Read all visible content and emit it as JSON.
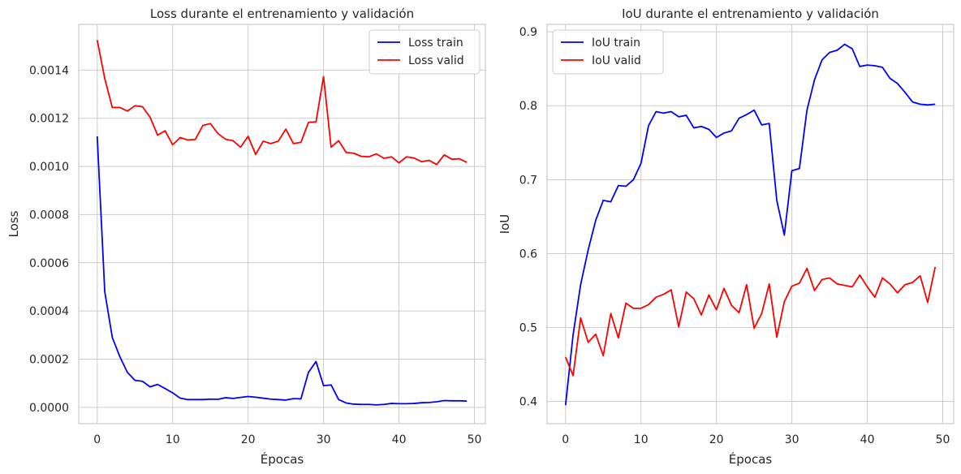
{
  "chart_data": [
    {
      "type": "line",
      "title": "Loss durante el entrenamiento y validación",
      "xlabel": "Épocas",
      "ylabel": "Loss",
      "xlim": [
        -2.45,
        51.45
      ],
      "ylim": [
        -6.8e-05,
        0.00159
      ],
      "xticks": [
        0,
        10,
        20,
        30,
        40,
        50
      ],
      "xtick_labels": [
        "0",
        "10",
        "20",
        "30",
        "40",
        "50"
      ],
      "yticks": [
        0,
        0.0002,
        0.0004,
        0.0006,
        0.0008,
        0.001,
        0.0012,
        0.0014
      ],
      "ytick_labels": [
        "0.0000",
        "0.0002",
        "0.0004",
        "0.0006",
        "0.0008",
        "0.0010",
        "0.0012",
        "0.0014"
      ],
      "grid": true,
      "legend_position": "upper right",
      "series": [
        {
          "name": "Loss train",
          "color": "#0000ff",
          "x": [
            0,
            1,
            2,
            3,
            4,
            5,
            6,
            7,
            8,
            9,
            10,
            11,
            12,
            13,
            14,
            15,
            16,
            17,
            18,
            19,
            20,
            21,
            22,
            23,
            24,
            25,
            26,
            27,
            28,
            29,
            30,
            31,
            32,
            33,
            34,
            35,
            36,
            37,
            38,
            39,
            40,
            41,
            42,
            43,
            44,
            45,
            46,
            47,
            48,
            49
          ],
          "values": [
            0.001125,
            0.00048,
            0.00029,
            0.00021,
            0.000145,
            0.000112,
            0.000108,
            8.5e-05,
            9.5e-05,
            7.8e-05,
            6e-05,
            3.8e-05,
            3.2e-05,
            3.2e-05,
            3.2e-05,
            3.4e-05,
            3.3e-05,
            4e-05,
            3.7e-05,
            4.1e-05,
            4.5e-05,
            4.2e-05,
            3.8e-05,
            3.4e-05,
            3.2e-05,
            3e-05,
            3.6e-05,
            3.5e-05,
            0.000145,
            0.00019,
            9e-05,
            9.3e-05,
            3.2e-05,
            1.8e-05,
            1.3e-05,
            1.2e-05,
            1.2e-05,
            1e-05,
            1.2e-05,
            1.6e-05,
            1.5e-05,
            1.5e-05,
            1.6e-05,
            1.9e-05,
            2e-05,
            2.3e-05,
            2.8e-05,
            2.7e-05,
            2.7e-05,
            2.6e-05
          ]
        },
        {
          "name": "Loss valid",
          "color": "#ff0000",
          "x": [
            0,
            1,
            2,
            3,
            4,
            5,
            6,
            7,
            8,
            9,
            10,
            11,
            12,
            13,
            14,
            15,
            16,
            17,
            18,
            19,
            20,
            21,
            22,
            23,
            24,
            25,
            26,
            27,
            28,
            29,
            30,
            31,
            32,
            33,
            34,
            35,
            36,
            37,
            38,
            39,
            40,
            41,
            42,
            43,
            44,
            45,
            46,
            47,
            48,
            49
          ],
          "values": [
            0.001525,
            0.001365,
            0.001245,
            0.001245,
            0.00123,
            0.001252,
            0.001248,
            0.001205,
            0.00113,
            0.001148,
            0.00109,
            0.00112,
            0.00111,
            0.001112,
            0.00117,
            0.001178,
            0.001137,
            0.001113,
            0.001107,
            0.00108,
            0.001125,
            0.00105,
            0.001105,
            0.001095,
            0.001105,
            0.001155,
            0.001095,
            0.0011,
            0.001183,
            0.001185,
            0.001373,
            0.00108,
            0.001107,
            0.001058,
            0.001055,
            0.001042,
            0.00104,
            0.001052,
            0.001034,
            0.00104,
            0.001015,
            0.00104,
            0.001035,
            0.00102,
            0.001025,
            0.001008,
            0.001048,
            0.00103,
            0.001032,
            0.001017
          ]
        }
      ]
    },
    {
      "type": "line",
      "title": "IoU durante el entrenamiento y validación",
      "xlabel": "Épocas",
      "ylabel": "IoU",
      "xlim": [
        -2.45,
        51.45
      ],
      "ylim": [
        0.37,
        0.91
      ],
      "xticks": [
        0,
        10,
        20,
        30,
        40,
        50
      ],
      "xtick_labels": [
        "0",
        "10",
        "20",
        "30",
        "40",
        "50"
      ],
      "yticks": [
        0.4,
        0.5,
        0.6,
        0.7,
        0.8,
        0.9
      ],
      "ytick_labels": [
        "0.4",
        "0.5",
        "0.6",
        "0.7",
        "0.8",
        "0.9"
      ],
      "grid": true,
      "legend_position": "upper left",
      "series": [
        {
          "name": "IoU train",
          "color": "#0000ff",
          "x": [
            0,
            1,
            2,
            3,
            4,
            5,
            6,
            7,
            8,
            9,
            10,
            11,
            12,
            13,
            14,
            15,
            16,
            17,
            18,
            19,
            20,
            21,
            22,
            23,
            24,
            25,
            26,
            27,
            28,
            29,
            30,
            31,
            32,
            33,
            34,
            35,
            36,
            37,
            38,
            39,
            40,
            41,
            42,
            43,
            44,
            45,
            46,
            47,
            48,
            49
          ],
          "values": [
            0.395,
            0.49,
            0.558,
            0.605,
            0.645,
            0.672,
            0.67,
            0.692,
            0.691,
            0.7,
            0.722,
            0.773,
            0.792,
            0.79,
            0.792,
            0.785,
            0.787,
            0.77,
            0.772,
            0.768,
            0.757,
            0.763,
            0.766,
            0.783,
            0.788,
            0.794,
            0.774,
            0.776,
            0.672,
            0.625,
            0.712,
            0.715,
            0.794,
            0.835,
            0.862,
            0.872,
            0.875,
            0.883,
            0.877,
            0.853,
            0.855,
            0.854,
            0.852,
            0.837,
            0.83,
            0.818,
            0.805,
            0.802,
            0.801,
            0.802
          ]
        },
        {
          "name": "IoU valid",
          "color": "#ff0000",
          "x": [
            0,
            1,
            2,
            3,
            4,
            5,
            6,
            7,
            8,
            9,
            10,
            11,
            12,
            13,
            14,
            15,
            16,
            17,
            18,
            19,
            20,
            21,
            22,
            23,
            24,
            25,
            26,
            27,
            28,
            29,
            30,
            31,
            32,
            33,
            34,
            35,
            36,
            37,
            38,
            39,
            40,
            41,
            42,
            43,
            44,
            45,
            46,
            47,
            48,
            49
          ],
          "values": [
            0.46,
            0.435,
            0.513,
            0.48,
            0.491,
            0.462,
            0.519,
            0.486,
            0.533,
            0.526,
            0.526,
            0.531,
            0.541,
            0.545,
            0.551,
            0.501,
            0.548,
            0.539,
            0.517,
            0.544,
            0.524,
            0.553,
            0.53,
            0.52,
            0.558,
            0.499,
            0.519,
            0.559,
            0.487,
            0.535,
            0.556,
            0.56,
            0.58,
            0.55,
            0.565,
            0.567,
            0.559,
            0.557,
            0.555,
            0.571,
            0.555,
            0.541,
            0.567,
            0.559,
            0.547,
            0.558,
            0.561,
            0.57,
            0.534,
            0.582
          ]
        }
      ]
    }
  ]
}
